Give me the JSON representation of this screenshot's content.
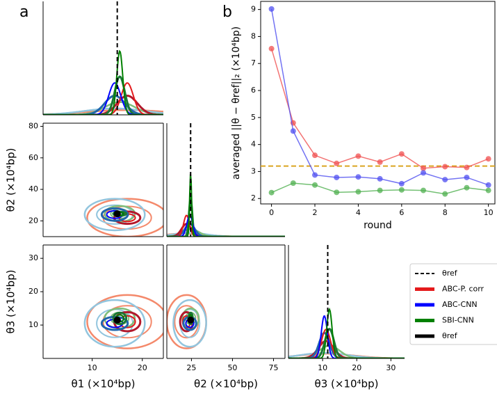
{
  "chart_data": [
    {
      "type": "corner",
      "panel_label": "a",
      "params": [
        {
          "label": "θ1 (×10⁴bp)",
          "lim": [
            0.2,
            24.2
          ],
          "xticks": [
            10,
            20
          ]
        },
        {
          "label": "θ2 (×10⁴bp)",
          "lim": [
            10,
            82
          ],
          "xticks": [
            25,
            50,
            75
          ],
          "yticks": [
            20,
            40,
            60,
            80
          ]
        },
        {
          "label": "θ3 (×10⁴bp)",
          "lim": [
            0,
            34
          ],
          "xticks": [
            10,
            20,
            30
          ],
          "yticks": [
            10,
            20,
            30
          ]
        }
      ],
      "ref": [
        15,
        24.5,
        11.5
      ],
      "ref_line_label": "θref",
      "ref_point_label": "θref",
      "series": [
        {
          "name": "ABC-P. corr",
          "color": "#e41a1c",
          "dark_color": "#b2182b",
          "light_color": "#f4896b",
          "center": [
            17,
            22,
            11
          ],
          "sd": [
            2,
            3,
            2.2
          ],
          "broad_sd": [
            8,
            12,
            8
          ]
        },
        {
          "name": "ABC-CNN",
          "color": "#0000ff",
          "dark_color": "#2166ac",
          "light_color": "#92c5de",
          "center": [
            14.5,
            24,
            10.5
          ],
          "sd": [
            2,
            3,
            1.5
          ],
          "broad_sd": [
            6,
            10,
            7
          ]
        },
        {
          "name": "SBI-CNN",
          "color": "#008000",
          "dark_color": "#1b7837",
          "light_color": "#7fbf7b",
          "center": [
            15.5,
            24.5,
            12
          ],
          "sd": [
            1,
            1,
            1.3
          ],
          "broad_sd": [
            3,
            5,
            3
          ]
        }
      ]
    },
    {
      "type": "line",
      "panel_label": "b",
      "xlabel": "round",
      "ylabel": "averaged ||θ − θref||₂ (×10⁴bp)",
      "x": [
        0,
        1,
        2,
        3,
        4,
        5,
        6,
        7,
        8,
        9,
        10
      ],
      "xlim": [
        -0.5,
        10.3
      ],
      "xticks": [
        0,
        2,
        4,
        6,
        8,
        10
      ],
      "ylim": [
        1.8,
        9.3
      ],
      "yticks": [
        2,
        3,
        4,
        5,
        6,
        7,
        8,
        9
      ],
      "hline": 3.2,
      "hline_color": "#daa520",
      "series": [
        {
          "color": "#f05050",
          "values": [
            7.55,
            4.8,
            3.6,
            3.3,
            3.57,
            3.35,
            3.65,
            3.12,
            3.18,
            3.15,
            3.47
          ]
        },
        {
          "color": "#5050f0",
          "values": [
            9.02,
            4.5,
            2.87,
            2.78,
            2.8,
            2.73,
            2.55,
            2.95,
            2.7,
            2.78,
            2.5
          ]
        },
        {
          "color": "#50b050",
          "values": [
            2.22,
            2.57,
            2.5,
            2.23,
            2.25,
            2.3,
            2.32,
            2.3,
            2.17,
            2.4,
            2.3
          ]
        }
      ]
    }
  ]
}
